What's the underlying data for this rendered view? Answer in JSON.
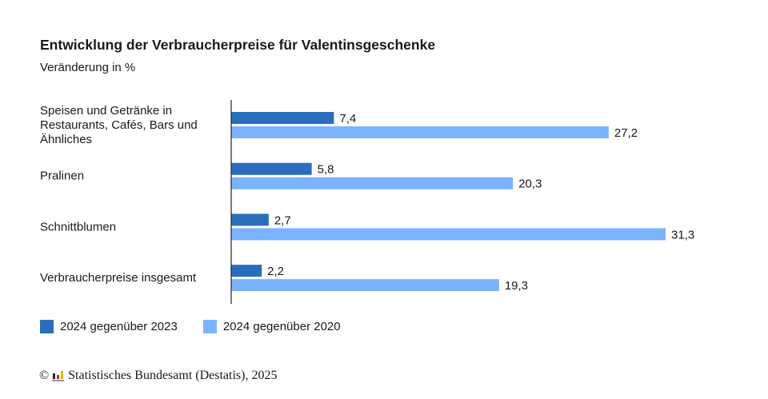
{
  "chart_data": {
    "type": "bar",
    "orientation": "horizontal",
    "title": "Entwicklung der Verbraucherpreise für Valentinsgeschenke",
    "subtitle": "Veränderung in %",
    "categories": [
      [
        "Speisen und Getränke in",
        "Restaurants, Cafés, Bars und",
        "Ähnliches"
      ],
      [
        "Pralinen"
      ],
      [
        "Schnittblumen"
      ],
      [
        "Verbraucherpreise insgesamt"
      ]
    ],
    "series": [
      {
        "name": "2024 gegenüber 2023",
        "color": "#2a6ebb",
        "values": [
          7.4,
          5.8,
          2.7,
          2.2
        ],
        "labels": [
          "7,4",
          "5,8",
          "2,7",
          "2,2"
        ]
      },
      {
        "name": "2024 gegenüber 2020",
        "color": "#7ab3ff",
        "values": [
          27.2,
          20.3,
          31.3,
          19.3
        ],
        "labels": [
          "27,2",
          "20,3",
          "31,3",
          "19,3"
        ]
      }
    ],
    "xlim": [
      0,
      31.3
    ],
    "grid": false,
    "legend_position": "bottom-left"
  },
  "footer": {
    "copyright": "©",
    "source": "Statistisches Bundesamt (Destatis), 2025"
  }
}
